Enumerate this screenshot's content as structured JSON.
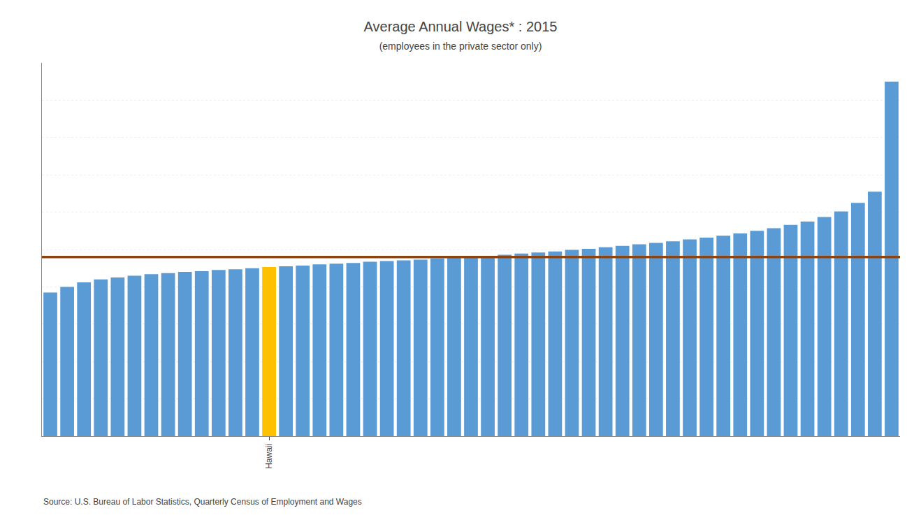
{
  "chart_data": {
    "type": "bar",
    "title": "Average Annual Wages* : 2015",
    "subtitle": "(employees in the private sector only)",
    "source": "Source: U.S. Bureau of Labor Statistics, Quarterly Census of Employment and Wages",
    "categories": [
      null,
      null,
      null,
      null,
      null,
      null,
      null,
      null,
      null,
      null,
      null,
      null,
      null,
      "Hawaii",
      null,
      null,
      null,
      null,
      null,
      null,
      null,
      null,
      null,
      null,
      null,
      null,
      null,
      null,
      null,
      null,
      null,
      null,
      null,
      null,
      null,
      null,
      null,
      null,
      null,
      null,
      null,
      null,
      null,
      null,
      null,
      null,
      null,
      null,
      null,
      null,
      null
    ],
    "values": [
      38500,
      40000,
      41200,
      42000,
      42500,
      43000,
      43400,
      43700,
      44000,
      44200,
      44500,
      44700,
      45000,
      45300,
      45500,
      45700,
      46000,
      46200,
      46400,
      46700,
      46900,
      47100,
      47300,
      47600,
      47800,
      48000,
      48300,
      48600,
      48900,
      49200,
      49500,
      49900,
      50200,
      50600,
      51000,
      51400,
      51800,
      52200,
      52700,
      53200,
      53700,
      54300,
      55000,
      55700,
      56600,
      57500,
      58700,
      60200,
      62500,
      65500,
      95000
    ],
    "colors": [
      "#5B9BD5",
      "#5B9BD5",
      "#5B9BD5",
      "#5B9BD5",
      "#5B9BD5",
      "#5B9BD5",
      "#5B9BD5",
      "#5B9BD5",
      "#5B9BD5",
      "#5B9BD5",
      "#5B9BD5",
      "#5B9BD5",
      "#5B9BD5",
      "#FFC000",
      "#5B9BD5",
      "#5B9BD5",
      "#5B9BD5",
      "#5B9BD5",
      "#5B9BD5",
      "#5B9BD5",
      "#5B9BD5",
      "#5B9BD5",
      "#5B9BD5",
      "#5B9BD5",
      "#5B9BD5",
      "#5B9BD5",
      "#5B9BD5",
      "#5B9BD5",
      "#5B9BD5",
      "#5B9BD5",
      "#5B9BD5",
      "#5B9BD5",
      "#5B9BD5",
      "#5B9BD5",
      "#5B9BD5",
      "#5B9BD5",
      "#5B9BD5",
      "#5B9BD5",
      "#5B9BD5",
      "#5B9BD5",
      "#5B9BD5",
      "#5B9BD5",
      "#5B9BD5",
      "#5B9BD5",
      "#5B9BD5",
      "#5B9BD5",
      "#5B9BD5",
      "#5B9BD5",
      "#5B9BD5",
      "#5B9BD5",
      "#5B9BD5"
    ],
    "hline": {
      "value": 48000,
      "color": "#8B4513"
    },
    "ylim": [
      0,
      100000
    ],
    "yticks": [
      0,
      10000,
      20000,
      30000,
      40000,
      50000,
      60000,
      70000,
      80000,
      90000,
      100000
    ],
    "grid": true,
    "tick_labels": "x"
  }
}
